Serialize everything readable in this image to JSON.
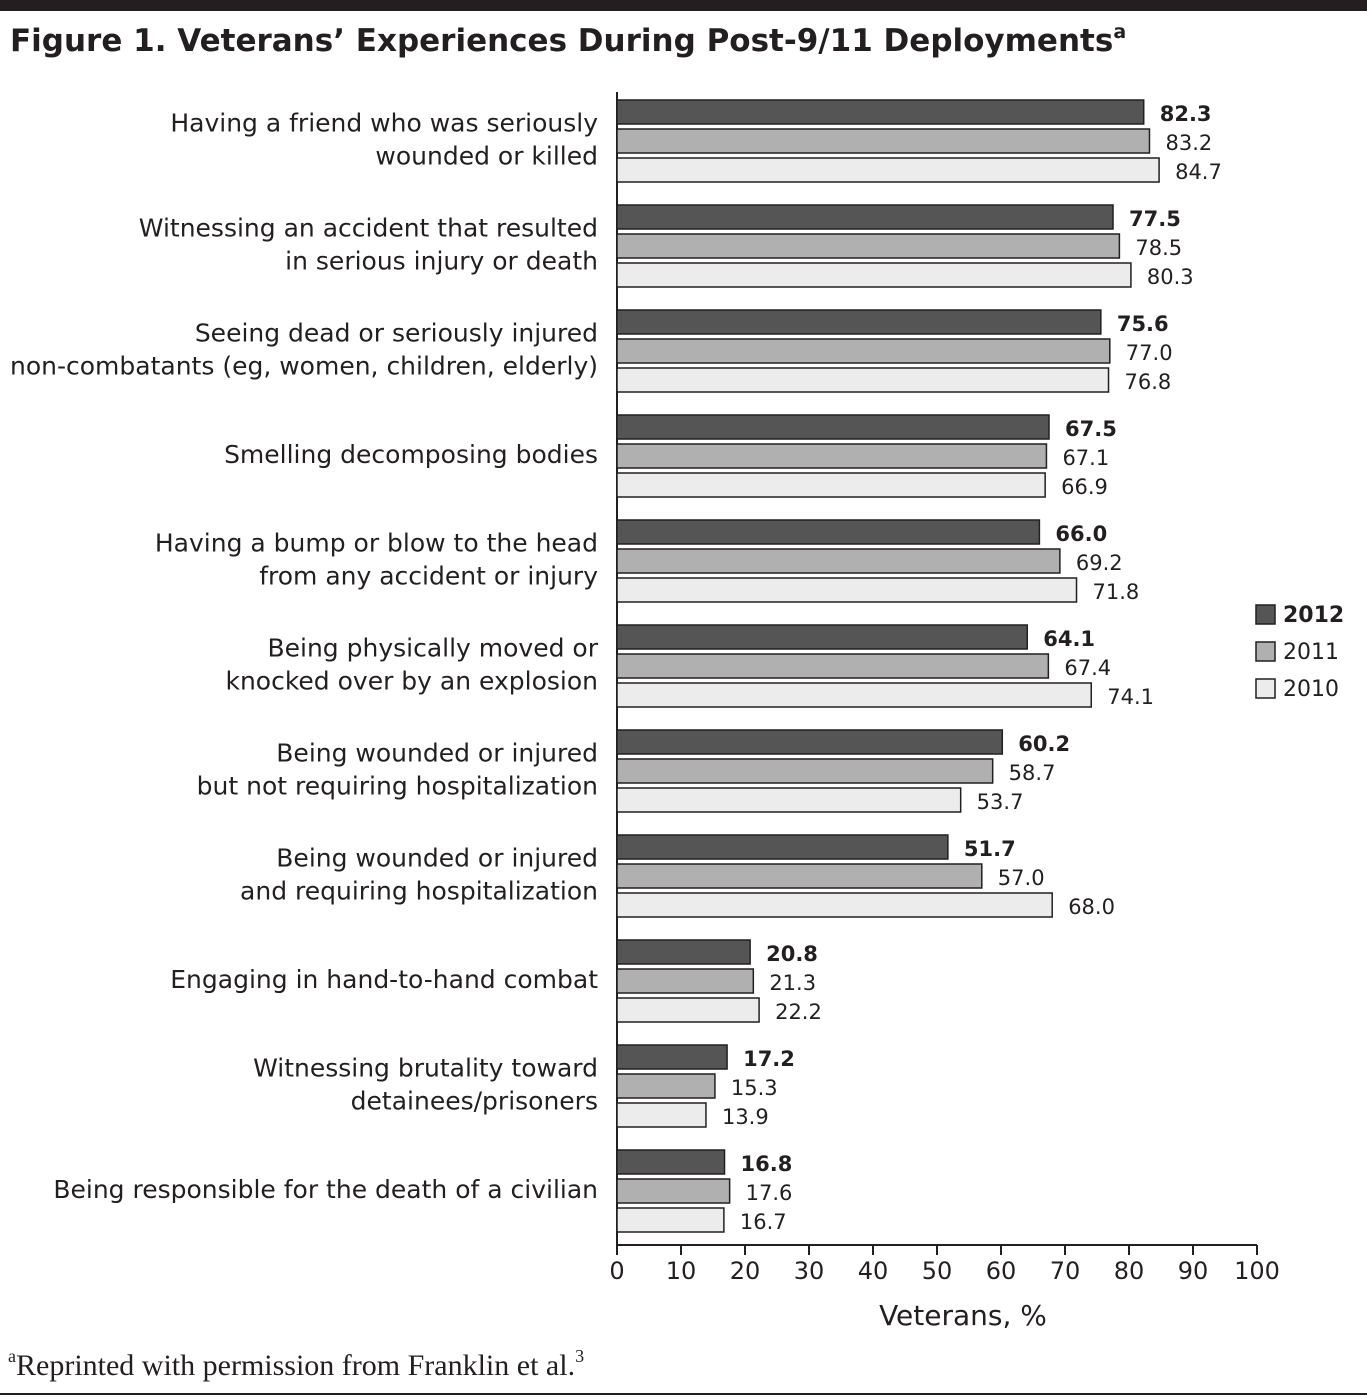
{
  "chart_data": {
    "type": "bar",
    "orientation": "horizontal",
    "title": "Figure 1. Veterans’ Experiences During Post-9/11 Deployments",
    "title_superscript": "a",
    "categories": [
      [
        "Having a friend who was seriously",
        "wounded or killed"
      ],
      [
        "Witnessing an accident that resulted",
        "in serious injury or death"
      ],
      [
        "Seeing dead or seriously injured",
        "non-combatants (eg, women, children, elderly)"
      ],
      [
        "Smelling decomposing bodies"
      ],
      [
        "Having a bump or blow to the head",
        "from any accident or injury"
      ],
      [
        "Being physically moved or",
        "knocked over by an explosion"
      ],
      [
        "Being wounded or injured",
        "but not requiring hospitalization"
      ],
      [
        "Being wounded or injured",
        "and requiring hospitalization"
      ],
      [
        "Engaging in hand-to-hand combat"
      ],
      [
        "Witnessing brutality toward",
        "detainees/prisoners"
      ],
      [
        "Being responsible for the death of a civilian"
      ]
    ],
    "series": [
      {
        "name": "2012",
        "color": "#555555",
        "values": [
          82.3,
          77.5,
          75.6,
          67.5,
          66.0,
          64.1,
          60.2,
          51.7,
          20.8,
          17.2,
          16.8
        ],
        "value_labels": [
          "82.3",
          "77.5",
          "75.6",
          "67.5",
          "66.0",
          "64.1",
          "60.2",
          "51.7",
          "20.8",
          "17.2",
          "16.8"
        ]
      },
      {
        "name": "2011",
        "color": "#b0b0b0",
        "values": [
          83.2,
          78.5,
          77.0,
          67.1,
          69.2,
          67.4,
          58.7,
          57.0,
          21.3,
          15.3,
          17.6
        ],
        "value_labels": [
          "83.2",
          "78.5",
          "77.0",
          "67.1",
          "69.2",
          "67.4",
          "58.7",
          "57.0",
          "21.3",
          "15.3",
          "17.6"
        ]
      },
      {
        "name": "2010",
        "color": "#ececec",
        "values": [
          84.7,
          80.3,
          76.8,
          66.9,
          71.8,
          74.1,
          53.7,
          68.0,
          22.2,
          13.9,
          16.7
        ],
        "value_labels": [
          "84.7",
          "80.3",
          "76.8",
          "66.9",
          "71.8",
          "74.1",
          "53.7",
          "68.0",
          "22.2",
          "13.9",
          "16.7"
        ]
      }
    ],
    "xlabel": "Veterans, %",
    "xlim": [
      0,
      100
    ],
    "xticks": [
      0,
      10,
      20,
      30,
      40,
      50,
      60,
      70,
      80,
      90,
      100
    ],
    "legend": "right",
    "footnote": {
      "marker": "a",
      "text": "Reprinted with permission from Franklin et al.",
      "ref": "3"
    }
  }
}
